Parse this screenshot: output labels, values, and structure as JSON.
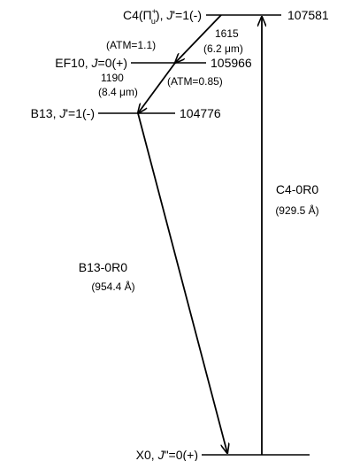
{
  "levels": {
    "c4": {
      "name": "C4(",
      "pi": "Π",
      "pi_sup": "+",
      "pi_sub": "u",
      "tail": "), ",
      "j_italic": "J",
      "j_rest": "'=1(-)",
      "energy": "107581"
    },
    "ef10": {
      "name": "EF10, ",
      "j_italic": "J",
      "j_rest": "=0(+)",
      "energy": "105966"
    },
    "b13": {
      "name": "B13, ",
      "j_italic": "J",
      "j_rest": "'=1(-)",
      "energy": "104776"
    },
    "x0": {
      "name": "X0, ",
      "j_italic": "J",
      "j_rest": "\"=0(+)"
    }
  },
  "transitions": {
    "c4_ef10": {
      "atm": "(ATM=1.1)",
      "number": "1615",
      "wavelength": "(6.2 μm)"
    },
    "ef10_b13": {
      "number": "1190",
      "wavelength": "(8.4 μm)",
      "atm": "(ATM=0.85)"
    },
    "b13_x0": {
      "name": "B13-0R0",
      "wavelength": "(954.4 Å)"
    },
    "x0_c4": {
      "name": "C4-0R0",
      "wavelength": "(929.5 Å)"
    }
  }
}
